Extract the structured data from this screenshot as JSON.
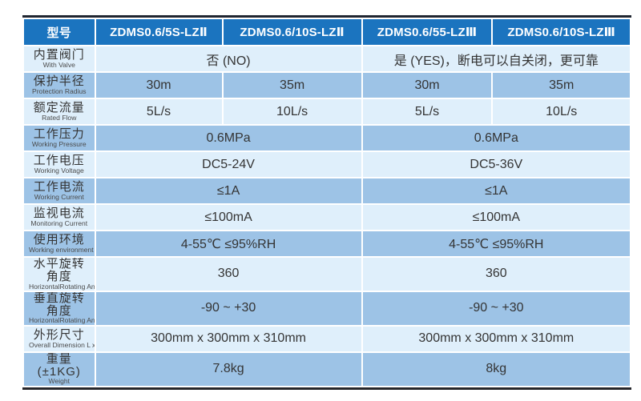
{
  "colors": {
    "header_bg": "#1b74bf",
    "header_text": "#ffffff",
    "row_light": "#dfeffb",
    "row_blue": "#9dc3e6",
    "frame_top": "#1f2530",
    "frame_bottom": "#26262a",
    "divider": "#ffffff"
  },
  "table": {
    "headers": [
      "型号",
      "ZDMS0.6/5S-LZⅡ",
      "ZDMS0.6/10S-LZⅡ",
      "ZDMS0.6/55-LZⅢ",
      "ZDMS0.6/10S-LZⅢ"
    ],
    "column_widths_pct": [
      11.7,
      21.0,
      23.0,
      21.5,
      22.8
    ],
    "rows": [
      {
        "label_zh": "内置阀门",
        "label_en": "With Valve",
        "cells": [
          {
            "span": 2,
            "text": "否 (NO)"
          },
          {
            "span": 2,
            "text": "是 (YES)，断电可以自关闭，更可靠"
          }
        ]
      },
      {
        "label_zh": "保护半径",
        "label_en": "Protection Radius",
        "cells": [
          {
            "span": 1,
            "text": "30m"
          },
          {
            "span": 1,
            "text": "35m"
          },
          {
            "span": 1,
            "text": "30m"
          },
          {
            "span": 1,
            "text": "35m"
          }
        ]
      },
      {
        "label_zh": "额定流量",
        "label_en": "Rated Flow",
        "cells": [
          {
            "span": 1,
            "text": "5L/s"
          },
          {
            "span": 1,
            "text": "10L/s"
          },
          {
            "span": 1,
            "text": "5L/s"
          },
          {
            "span": 1,
            "text": "10L/s"
          }
        ]
      },
      {
        "label_zh": "工作压力",
        "label_en": "Working Pressure",
        "cells": [
          {
            "span": 2,
            "text": "0.6MPa"
          },
          {
            "span": 2,
            "text": "0.6MPa"
          }
        ]
      },
      {
        "label_zh": "工作电压",
        "label_en": "Working Voltage",
        "cells": [
          {
            "span": 2,
            "text": "DC5-24V"
          },
          {
            "span": 2,
            "text": "DC5-36V"
          }
        ]
      },
      {
        "label_zh": "工作电流",
        "label_en": "Working Current",
        "cells": [
          {
            "span": 2,
            "text": "≤1A"
          },
          {
            "span": 2,
            "text": "≤1A"
          }
        ]
      },
      {
        "label_zh": "监视电流",
        "label_en": "Monitoring Current",
        "cells": [
          {
            "span": 2,
            "text": "≤100mA"
          },
          {
            "span": 2,
            "text": "≤100mA"
          }
        ]
      },
      {
        "label_zh": "使用环境",
        "label_en": "Working environment",
        "cells": [
          {
            "span": 2,
            "text": "4-55℃  ≤95%RH"
          },
          {
            "span": 2,
            "text": "4-55℃  ≤95%RH"
          }
        ]
      },
      {
        "label_zh": "水平旋转角度",
        "label_en": "HorizontalRotating Angle",
        "cells": [
          {
            "span": 2,
            "text": "360"
          },
          {
            "span": 2,
            "text": "360"
          }
        ]
      },
      {
        "label_zh": "垂直旋转角度",
        "label_en": "HorizontalRotating Angle",
        "cells": [
          {
            "span": 2,
            "text": "-90 ~ +30"
          },
          {
            "span": 2,
            "text": "-90 ~ +30"
          }
        ]
      },
      {
        "label_zh": "外形尺寸",
        "label_en": "Overall Dimension L x W x H",
        "cells": [
          {
            "span": 2,
            "text": "300mm x 300mm x 310mm"
          },
          {
            "span": 2,
            "text": "300mm x 300mm x 310mm"
          }
        ]
      },
      {
        "label_zh": "重量(±1KG)",
        "label_en": "Weight",
        "cells": [
          {
            "span": 2,
            "text": "7.8kg"
          },
          {
            "span": 2,
            "text": "8kg"
          }
        ]
      }
    ]
  }
}
